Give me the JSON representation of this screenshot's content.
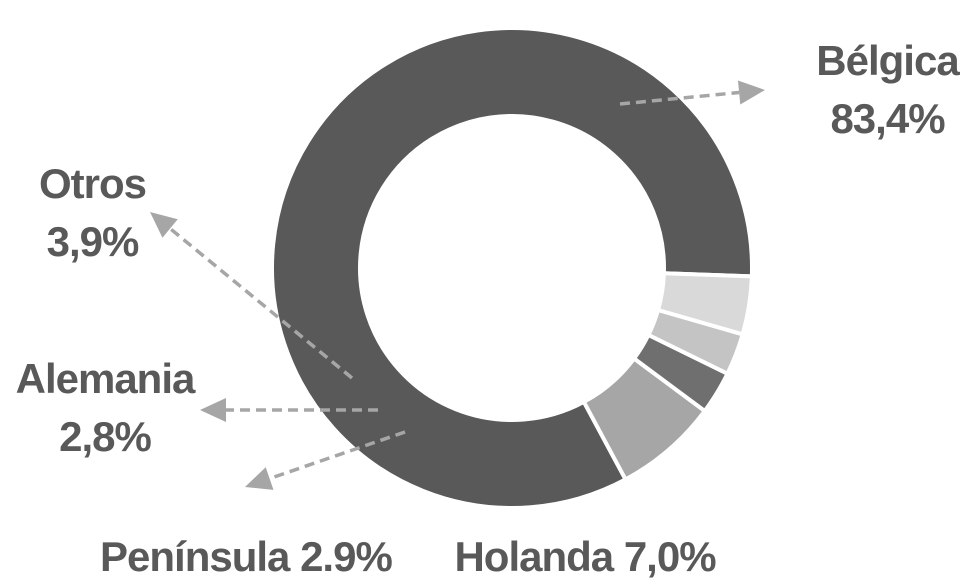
{
  "chart_data": {
    "type": "pie",
    "variant": "donut",
    "slices": [
      {
        "name": "Bélgica",
        "value": 83.4,
        "value_label": "83,4%",
        "color": "#595959"
      },
      {
        "name": "Holanda",
        "value": 7.0,
        "value_label": "7,0%",
        "color": "#a6a6a6"
      },
      {
        "name": "Península",
        "value": 2.9,
        "value_label": "2.9%",
        "color": "#6f6f6f"
      },
      {
        "name": "Alemania",
        "value": 2.8,
        "value_label": "2,8%",
        "color": "#c4c4c4"
      },
      {
        "name": "Otros",
        "value": 3.9,
        "value_label": "3,9%",
        "color": "#d9d9d9"
      }
    ],
    "leader_line_color": "#a6a6a6",
    "label_color": "#595959",
    "legend": "none"
  }
}
